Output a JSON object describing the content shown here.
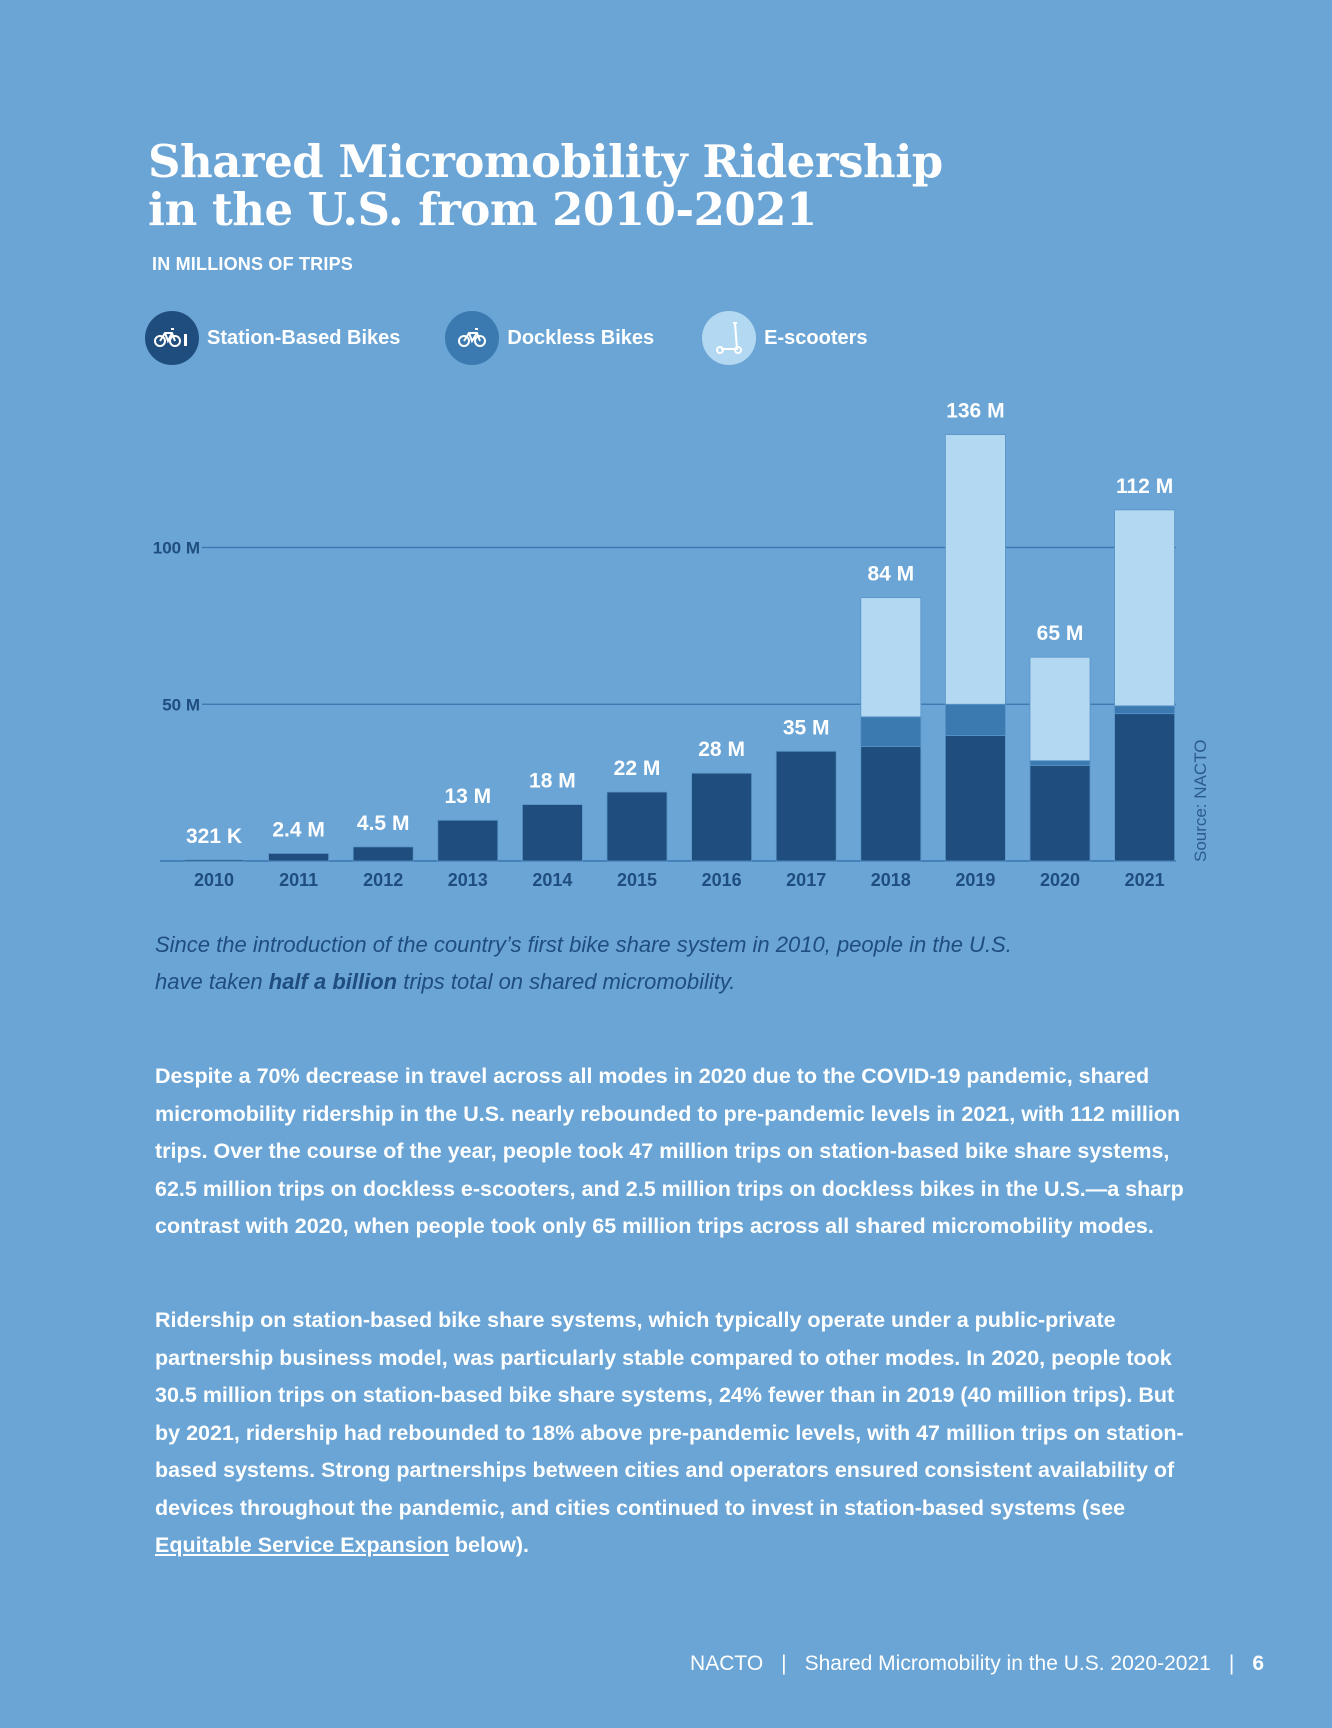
{
  "title_line1": "Shared Micromobility Ridership",
  "title_line2": "in the U.S. from 2010-2021",
  "subtitle": "IN MILLIONS OF TRIPS",
  "legend": [
    {
      "label": "Station-Based Bikes",
      "icon": "station-bike-icon",
      "color": "#1f4e7e"
    },
    {
      "label": "Dockless Bikes",
      "icon": "bike-icon",
      "color": "#3a7ab0"
    },
    {
      "label": "E-scooters",
      "icon": "scooter-icon",
      "color": "#b3d8f1"
    }
  ],
  "colors": {
    "background": "#6aa5d6",
    "station": "#1f4e7e",
    "dockless": "#3a7ab0",
    "scooters": "#b3d8f1",
    "gridline": "#3a74ad",
    "axis_text": "#1f4e7e"
  },
  "chart_data": {
    "type": "bar",
    "stacked": true,
    "title": "Shared Micromobility Ridership in the U.S. from 2010-2021",
    "subtitle": "IN MILLIONS OF TRIPS",
    "xlabel": "",
    "ylabel": "",
    "categories": [
      "2010",
      "2011",
      "2012",
      "2013",
      "2014",
      "2015",
      "2016",
      "2017",
      "2018",
      "2019",
      "2020",
      "2021"
    ],
    "series": [
      {
        "name": "Station-Based Bikes",
        "values": [
          0.321,
          2.4,
          4.5,
          13,
          18,
          22,
          28,
          35,
          36.5,
          40,
          30.5,
          47
        ]
      },
      {
        "name": "Dockless Bikes",
        "values": [
          0,
          0,
          0,
          0,
          0,
          0,
          0,
          0,
          9.5,
          10,
          1.5,
          2.5
        ]
      },
      {
        "name": "E-scooters",
        "values": [
          0,
          0,
          0,
          0,
          0,
          0,
          0,
          0,
          38,
          86,
          33,
          62.5
        ]
      }
    ],
    "totals_labels": [
      "321 K",
      "2.4 M",
      "4.5 M",
      "13 M",
      "18 M",
      "22 M",
      "28 M",
      "35 M",
      "84 M",
      "136 M",
      "65 M",
      "112 M"
    ],
    "totals": [
      0.321,
      2.4,
      4.5,
      13,
      18,
      22,
      28,
      35,
      84,
      136,
      65,
      112
    ],
    "yticks": [
      50,
      100
    ],
    "ytick_labels": [
      "50 M",
      "100 M"
    ],
    "ylim": [
      0,
      140
    ],
    "grid": true,
    "legend_position": "top-left",
    "source": "Source: NACTO"
  },
  "caption": {
    "line1": "Since the introduction of the country’s first bike share system in 2010, people in the U.S.",
    "line2_pre": "have taken ",
    "line2_bold": "half a billion",
    "line2_post": " trips total on shared micromobility."
  },
  "paragraph1": [
    {
      "t": "Despite a 70% decrease in travel across all modes in 2020 due to the COVID-19 pandemic, shared micromobility ridership in the U.S. nearly rebounded to pre-pandemic levels in 2021, with ",
      "b": false
    },
    {
      "t": "112 million",
      "b": true
    },
    {
      "t": " trips. Over the course of the year, people took ",
      "b": false
    },
    {
      "t": "47 million",
      "b": true
    },
    {
      "t": " trips on station-based bike share systems, ",
      "b": false
    },
    {
      "t": "62.5 million",
      "b": true
    },
    {
      "t": " trips on dockless e-scooters, and ",
      "b": false
    },
    {
      "t": "2.5 million",
      "b": true
    },
    {
      "t": " trips on dockless bikes in the U.S.—a sharp contrast with 2020, when people took only ",
      "b": false
    },
    {
      "t": "65 million",
      "b": true
    },
    {
      "t": " trips across all shared micromobility modes.",
      "b": false
    }
  ],
  "paragraph2": [
    {
      "t": "Ridership on station-based bike share systems, which typically operate under a public-private partnership business model, was particularly stable compared to other modes. In 2020, people took ",
      "b": false
    },
    {
      "t": "30.5 million",
      "b": true
    },
    {
      "t": " trips on station-based bike share systems, 24% fewer than in 2019 (40 million trips). But by 2021, ridership had rebounded to 18% above pre-pandemic levels, with ",
      "b": false
    },
    {
      "t": "47 million",
      "b": true
    },
    {
      "t": " trips on station-based systems. Strong partnerships between cities and operators ensured consistent availability of devices throughout the pandemic, and cities continued to invest in station-based systems (see ",
      "b": false
    },
    {
      "t": "Equitable Service Expansion",
      "link": true
    },
    {
      "t": " below).",
      "b": false
    }
  ],
  "footer": {
    "org": "NACTO",
    "separator": "|",
    "doc_title": "Shared Micromobility in the U.S. 2020-2021",
    "page": "6"
  }
}
